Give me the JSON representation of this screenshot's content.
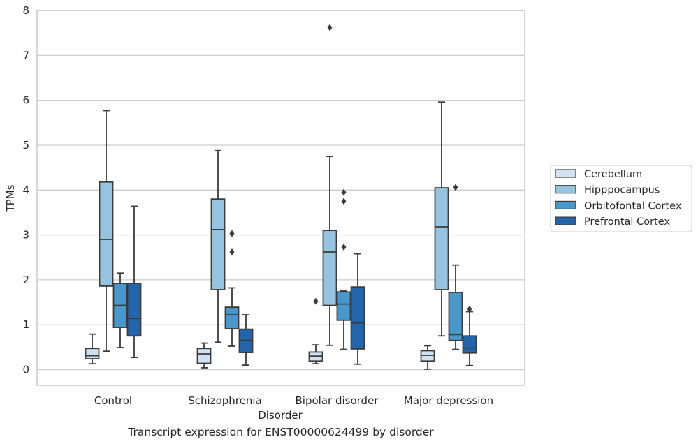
{
  "caption": "Transcript expression for ENST00000624499 by disorder",
  "chart_data": {
    "type": "boxplot",
    "xlabel": "Disorder",
    "ylabel": "TPMs",
    "ylim": [
      -0.35,
      8.0
    ],
    "yticks": [
      0,
      1,
      2,
      3,
      4,
      5,
      6,
      7,
      8
    ],
    "grid": "horizontal",
    "legend_position": "right",
    "categories": [
      "Control",
      "Schizophrenia",
      "Bipolar disorder",
      "Major depression"
    ],
    "series": [
      {
        "name": "Cerebellum",
        "color": "#d0e1f2",
        "boxes": [
          {
            "whislo": 0.13,
            "q1": 0.24,
            "med": 0.31,
            "q3": 0.47,
            "whishi": 0.79,
            "fliers": []
          },
          {
            "whislo": 0.04,
            "q1": 0.14,
            "med": 0.35,
            "q3": 0.47,
            "whishi": 0.59,
            "fliers": []
          },
          {
            "whislo": 0.13,
            "q1": 0.19,
            "med": 0.3,
            "q3": 0.39,
            "whishi": 0.55,
            "fliers": [
              1.52
            ]
          },
          {
            "whislo": 0.01,
            "q1": 0.19,
            "med": 0.32,
            "q3": 0.42,
            "whishi": 0.53,
            "fliers": []
          }
        ]
      },
      {
        "name": "Hipppocampus",
        "color": "#94c4df",
        "boxes": [
          {
            "whislo": 0.41,
            "q1": 1.86,
            "med": 2.9,
            "q3": 4.18,
            "whishi": 5.77,
            "fliers": []
          },
          {
            "whislo": 0.61,
            "q1": 1.78,
            "med": 3.12,
            "q3": 3.8,
            "whishi": 4.88,
            "fliers": []
          },
          {
            "whislo": 0.54,
            "q1": 1.43,
            "med": 2.62,
            "q3": 3.1,
            "whishi": 4.75,
            "fliers": [
              7.62
            ]
          },
          {
            "whislo": 0.75,
            "q1": 1.78,
            "med": 3.18,
            "q3": 4.05,
            "whishi": 5.96,
            "fliers": []
          }
        ]
      },
      {
        "name": "Orbitofontal Cortex",
        "color": "#4a98c9",
        "boxes": [
          {
            "whislo": 0.49,
            "q1": 0.94,
            "med": 1.43,
            "q3": 1.92,
            "whishi": 2.15,
            "fliers": []
          },
          {
            "whislo": 0.52,
            "q1": 0.91,
            "med": 1.22,
            "q3": 1.39,
            "whishi": 1.82,
            "fliers": [
              2.62,
              3.03
            ]
          },
          {
            "whislo": 0.45,
            "q1": 1.1,
            "med": 1.46,
            "q3": 1.73,
            "whishi": 1.75,
            "fliers": [
              2.73,
              3.75,
              3.95
            ]
          },
          {
            "whislo": 0.45,
            "q1": 0.65,
            "med": 0.78,
            "q3": 1.72,
            "whishi": 2.33,
            "fliers": [
              4.06
            ]
          }
        ]
      },
      {
        "name": "Prefrontal Cortex",
        "color": "#2166ac",
        "boxes": [
          {
            "whislo": 0.27,
            "q1": 0.75,
            "med": 1.14,
            "q3": 1.92,
            "whishi": 3.64,
            "fliers": []
          },
          {
            "whislo": 0.1,
            "q1": 0.38,
            "med": 0.65,
            "q3": 0.9,
            "whishi": 1.22,
            "fliers": []
          },
          {
            "whislo": 0.12,
            "q1": 0.46,
            "med": 1.04,
            "q3": 1.84,
            "whishi": 2.58,
            "fliers": []
          },
          {
            "whislo": 0.09,
            "q1": 0.37,
            "med": 0.48,
            "q3": 0.75,
            "whishi": 1.29,
            "fliers": [
              1.35
            ]
          }
        ]
      }
    ]
  }
}
